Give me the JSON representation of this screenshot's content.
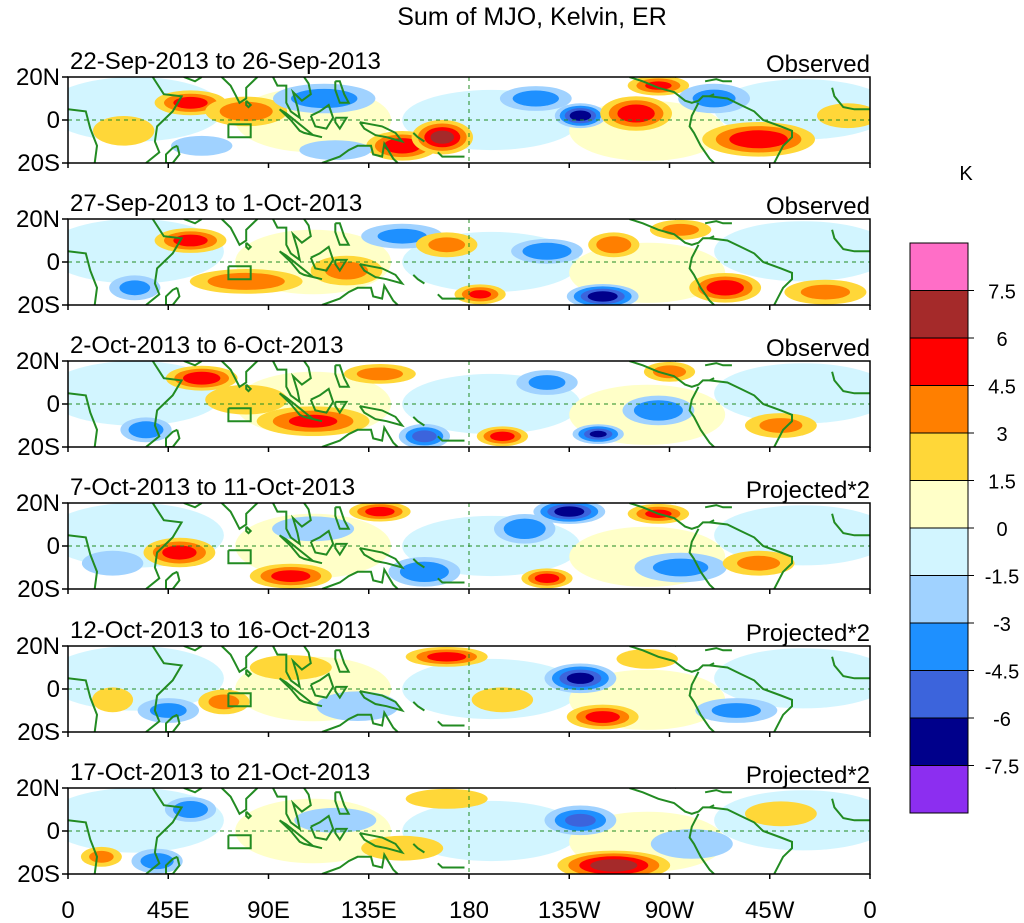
{
  "figure": {
    "title": "Sum of MJO, Kelvin, ER",
    "colorbar_unit": "K"
  },
  "panels": [
    {
      "dates": "22-Sep-2013 to 26-Sep-2013",
      "tag": "Observed"
    },
    {
      "dates": "27-Sep-2013 to 1-Oct-2013",
      "tag": "Observed"
    },
    {
      "dates": "2-Oct-2013 to 6-Oct-2013",
      "tag": "Observed"
    },
    {
      "dates": "7-Oct-2013 to 11-Oct-2013",
      "tag": "Projected*2"
    },
    {
      "dates": "12-Oct-2013 to 16-Oct-2013",
      "tag": "Projected*2"
    },
    {
      "dates": "17-Oct-2013 to 21-Oct-2013",
      "tag": "Projected*2"
    }
  ],
  "lat_ticks": [
    "20N",
    "0",
    "20S"
  ],
  "lon_ticks": [
    "0",
    "45E",
    "90E",
    "135E",
    "180",
    "135W",
    "90W",
    "45W",
    "0"
  ],
  "colorbar": {
    "labels": [
      "7.5",
      "6",
      "4.5",
      "3",
      "1.5",
      "0",
      "-1.5",
      "-3",
      "-4.5",
      "-6",
      "-7.5"
    ],
    "colors": [
      "#ff6ec7",
      "#a52a2a",
      "#ff0000",
      "#ff7f00",
      "#ffd738",
      "#ffffc8",
      "#d2f5ff",
      "#a0d2ff",
      "#1e90ff",
      "#3c64dc",
      "#00008b",
      "#8c2ef0"
    ]
  },
  "map_colors": {
    "coast": "#228b22",
    "equator_line": "#228b22",
    "neutral": "#ffffff"
  },
  "chart_data": {
    "type": "heatmap",
    "title": "Sum of MJO, Kelvin, ER",
    "xlabel": "",
    "ylabel": "",
    "x_range": [
      "0",
      "0"
    ],
    "y_range": [
      "20S",
      "20N"
    ],
    "grid": false,
    "legend": "right",
    "units": "K",
    "blobs": [
      [
        {
          "lon": 55,
          "lat": 8,
          "rlon": 14,
          "rlat": 5,
          "v": 5.0
        },
        {
          "lon": 80,
          "lat": 4,
          "rlon": 16,
          "rlat": 6,
          "v": 3.5
        },
        {
          "lon": 25,
          "lat": -5,
          "rlon": 12,
          "rlat": 6,
          "v": 2.5
        },
        {
          "lon": 150,
          "lat": -12,
          "rlon": 14,
          "rlat": 6,
          "v": 5.5
        },
        {
          "lon": 168,
          "lat": -8,
          "rlon": 12,
          "rlat": 7,
          "v": 6.5
        },
        {
          "lon": 230,
          "lat": 2,
          "rlon": 10,
          "rlat": 5,
          "v": -7.0
        },
        {
          "lon": 210,
          "lat": 10,
          "rlon": 14,
          "rlat": 5,
          "v": -3.5
        },
        {
          "lon": 255,
          "lat": 3,
          "rlon": 14,
          "rlat": 7,
          "v": 5.5
        },
        {
          "lon": 310,
          "lat": -9,
          "rlon": 22,
          "rlat": 7,
          "v": 5.5
        },
        {
          "lon": 265,
          "lat": 16,
          "rlon": 12,
          "rlat": 4,
          "v": 4.5
        },
        {
          "lon": 115,
          "lat": 10,
          "rlon": 20,
          "rlat": 6,
          "v": -3.5
        },
        {
          "lon": 120,
          "lat": -14,
          "rlon": 14,
          "rlat": 4,
          "v": -2.5
        },
        {
          "lon": 290,
          "lat": 10,
          "rlon": 14,
          "rlat": 6,
          "v": -3.0
        },
        {
          "lon": 350,
          "lat": 2,
          "rlon": 12,
          "rlat": 5,
          "v": 2.5
        },
        {
          "lon": 60,
          "lat": -12,
          "rlon": 12,
          "rlat": 4,
          "v": -2.5
        }
      ],
      [
        {
          "lon": 55,
          "lat": 10,
          "rlon": 14,
          "rlat": 5,
          "v": 5.0
        },
        {
          "lon": 80,
          "lat": -9,
          "rlon": 22,
          "rlat": 5,
          "v": 4.0
        },
        {
          "lon": 125,
          "lat": -4,
          "rlon": 14,
          "rlat": 6,
          "v": 3.0
        },
        {
          "lon": 185,
          "lat": -15,
          "rlon": 10,
          "rlat": 4,
          "v": 4.5
        },
        {
          "lon": 240,
          "lat": -16,
          "rlon": 14,
          "rlat": 5,
          "v": -7.0
        },
        {
          "lon": 215,
          "lat": 5,
          "rlon": 14,
          "rlat": 5,
          "v": -4.0
        },
        {
          "lon": 245,
          "lat": 8,
          "rlon": 10,
          "rlat": 5,
          "v": 4.0
        },
        {
          "lon": 295,
          "lat": -12,
          "rlon": 14,
          "rlat": 6,
          "v": 5.5
        },
        {
          "lon": 275,
          "lat": 15,
          "rlon": 12,
          "rlat": 4,
          "v": 3.0
        },
        {
          "lon": 150,
          "lat": 12,
          "rlon": 16,
          "rlat": 5,
          "v": -3.0
        },
        {
          "lon": 30,
          "lat": -12,
          "rlon": 10,
          "rlat": 5,
          "v": -3.0
        },
        {
          "lon": 170,
          "lat": 8,
          "rlon": 12,
          "rlat": 5,
          "v": 3.0
        },
        {
          "lon": 340,
          "lat": -14,
          "rlon": 16,
          "rlat": 5,
          "v": 3.0
        }
      ],
      [
        {
          "lon": 60,
          "lat": 12,
          "rlon": 14,
          "rlat": 5,
          "v": 5.5
        },
        {
          "lon": 110,
          "lat": -8,
          "rlon": 22,
          "rlat": 6,
          "v": 4.5
        },
        {
          "lon": 35,
          "lat": -12,
          "rlon": 10,
          "rlat": 5,
          "v": -4.0
        },
        {
          "lon": 195,
          "lat": -15,
          "rlon": 10,
          "rlat": 4,
          "v": 5.0
        },
        {
          "lon": 160,
          "lat": -15,
          "rlon": 10,
          "rlat": 5,
          "v": -5.0
        },
        {
          "lon": 238,
          "lat": -14,
          "rlon": 10,
          "rlat": 4,
          "v": -6.0
        },
        {
          "lon": 215,
          "lat": 10,
          "rlon": 12,
          "rlat": 5,
          "v": -3.0
        },
        {
          "lon": 265,
          "lat": -3,
          "rlon": 14,
          "rlat": 6,
          "v": -4.0
        },
        {
          "lon": 320,
          "lat": -10,
          "rlon": 14,
          "rlat": 5,
          "v": 3.0
        },
        {
          "lon": 270,
          "lat": 15,
          "rlon": 10,
          "rlat": 4,
          "v": 3.5
        },
        {
          "lon": 140,
          "lat": 14,
          "rlon": 14,
          "rlat": 4,
          "v": 3.5
        },
        {
          "lon": 80,
          "lat": 2,
          "rlon": 16,
          "rlat": 6,
          "v": 1.8
        }
      ],
      [
        {
          "lon": 50,
          "lat": -3,
          "rlon": 14,
          "rlat": 6,
          "v": 5.0
        },
        {
          "lon": 100,
          "lat": -14,
          "rlon": 16,
          "rlat": 5,
          "v": 5.0
        },
        {
          "lon": 140,
          "lat": 16,
          "rlon": 12,
          "rlat": 4,
          "v": 5.0
        },
        {
          "lon": 160,
          "lat": -12,
          "rlon": 14,
          "rlat": 6,
          "v": -4.0
        },
        {
          "lon": 225,
          "lat": 16,
          "rlon": 14,
          "rlat": 5,
          "v": -7.0
        },
        {
          "lon": 205,
          "lat": 8,
          "rlon": 12,
          "rlat": 6,
          "v": -4.0
        },
        {
          "lon": 215,
          "lat": -15,
          "rlon": 10,
          "rlat": 4,
          "v": 5.0
        },
        {
          "lon": 265,
          "lat": 15,
          "rlon": 12,
          "rlat": 4,
          "v": 4.5
        },
        {
          "lon": 275,
          "lat": -10,
          "rlon": 18,
          "rlat": 6,
          "v": -3.0
        },
        {
          "lon": 310,
          "lat": -8,
          "rlon": 14,
          "rlat": 5,
          "v": 3.0
        },
        {
          "lon": 110,
          "lat": 8,
          "rlon": 16,
          "rlat": 5,
          "v": -2.5
        },
        {
          "lon": 20,
          "lat": -8,
          "rlon": 12,
          "rlat": 5,
          "v": -2.5
        }
      ],
      [
        {
          "lon": 170,
          "lat": 15,
          "rlon": 16,
          "rlat": 4,
          "v": 5.0
        },
        {
          "lon": 230,
          "lat": 5,
          "rlon": 14,
          "rlat": 6,
          "v": -6.5
        },
        {
          "lon": 240,
          "lat": -13,
          "rlon": 14,
          "rlat": 5,
          "v": 5.0
        },
        {
          "lon": 45,
          "lat": -10,
          "rlon": 12,
          "rlat": 5,
          "v": -3.0
        },
        {
          "lon": 70,
          "lat": -6,
          "rlon": 10,
          "rlat": 5,
          "v": 3.0
        },
        {
          "lon": 130,
          "lat": -8,
          "rlon": 16,
          "rlat": 6,
          "v": -2.5
        },
        {
          "lon": 260,
          "lat": 14,
          "rlon": 12,
          "rlat": 4,
          "v": 2.5
        },
        {
          "lon": 300,
          "lat": -10,
          "rlon": 16,
          "rlat": 5,
          "v": -3.0
        },
        {
          "lon": 20,
          "lat": -5,
          "rlon": 8,
          "rlat": 5,
          "v": 2.5
        },
        {
          "lon": 100,
          "lat": 10,
          "rlon": 16,
          "rlat": 5,
          "v": 1.8
        },
        {
          "lon": 195,
          "lat": -5,
          "rlon": 12,
          "rlat": 5,
          "v": 2.0
        }
      ],
      [
        {
          "lon": 245,
          "lat": -16,
          "rlon": 22,
          "rlat": 6,
          "v": 7.0
        },
        {
          "lon": 230,
          "lat": 5,
          "rlon": 14,
          "rlat": 6,
          "v": -4.5
        },
        {
          "lon": 55,
          "lat": 10,
          "rlon": 10,
          "rlat": 5,
          "v": -4.0
        },
        {
          "lon": 40,
          "lat": -14,
          "rlon": 10,
          "rlat": 5,
          "v": -3.5
        },
        {
          "lon": 120,
          "lat": 5,
          "rlon": 16,
          "rlat": 5,
          "v": -2.5
        },
        {
          "lon": 150,
          "lat": -8,
          "rlon": 16,
          "rlat": 5,
          "v": 2.0
        },
        {
          "lon": 280,
          "lat": -6,
          "rlon": 16,
          "rlat": 6,
          "v": -2.5
        },
        {
          "lon": 320,
          "lat": 8,
          "rlon": 14,
          "rlat": 5,
          "v": 2.5
        },
        {
          "lon": 15,
          "lat": -12,
          "rlon": 8,
          "rlat": 4,
          "v": 3.0
        },
        {
          "lon": 170,
          "lat": 15,
          "rlon": 16,
          "rlat": 4,
          "v": 2.0
        }
      ]
    ]
  }
}
